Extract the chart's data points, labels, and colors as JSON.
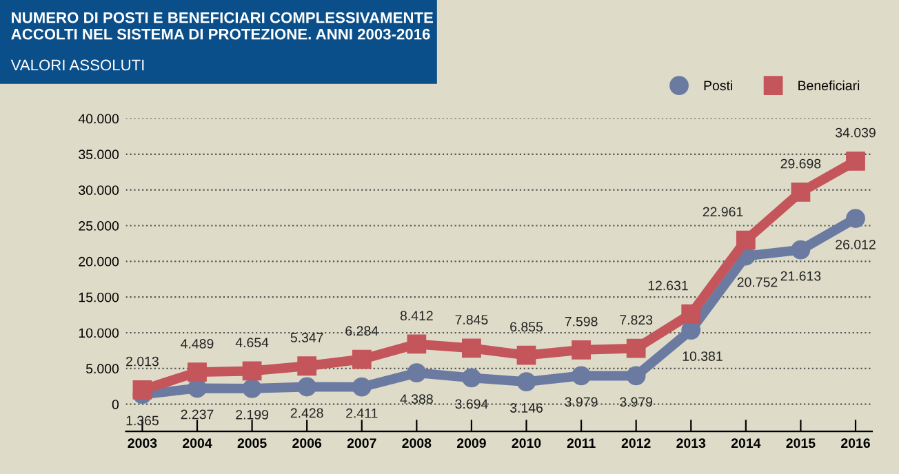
{
  "chart_data": {
    "type": "line",
    "title": "NUMERO DI POSTI E BENEFICIARI COMPLESSIVAMENTE\nACCOLTI NEL SISTEMA DI PROTEZIONE. ANNI 2003-2016",
    "subtitle": "VALORI ASSOLUTI",
    "categories": [
      "2003",
      "2004",
      "2005",
      "2006",
      "2007",
      "2008",
      "2009",
      "2010",
      "2011",
      "2012",
      "2013",
      "2014",
      "2015",
      "2016"
    ],
    "series": [
      {
        "name": "Posti",
        "color": "#6b7aa1",
        "marker": "circle",
        "values": [
          1365,
          2237,
          2199,
          2428,
          2411,
          4388,
          3694,
          3146,
          3979,
          3979,
          10381,
          20752,
          21613,
          26012
        ],
        "value_labels": [
          "1.365",
          "2.237",
          "2.199",
          "2.428",
          "2.411",
          "4.388",
          "3.694",
          "3.146",
          "3.979",
          "3.979",
          "10.381",
          "20.752",
          "21.613",
          "26.012"
        ]
      },
      {
        "name": "Beneficiari",
        "color": "#c4555a",
        "marker": "square",
        "values": [
          2013,
          4489,
          4654,
          5347,
          6284,
          8412,
          7845,
          6855,
          7598,
          7823,
          12631,
          22961,
          29698,
          34039
        ],
        "value_labels": [
          "2.013",
          "4.489",
          "4.654",
          "5.347",
          "6.284",
          "8.412",
          "7.845",
          "6.855",
          "7.598",
          "7.823",
          "12.631",
          "22.961",
          "29.698",
          "34.039"
        ]
      }
    ],
    "ylim": [
      -3800,
      40000
    ],
    "yticks": [
      {
        "value": 0,
        "label": "0"
      },
      {
        "value": 5000,
        "label": "5.000"
      },
      {
        "value": 10000,
        "label": "10.000"
      },
      {
        "value": 15000,
        "label": "15.000"
      },
      {
        "value": 20000,
        "label": "20.000"
      },
      {
        "value": 25000,
        "label": "25.000"
      },
      {
        "value": 30000,
        "label": "30.000"
      },
      {
        "value": 35000,
        "label": "35.000"
      },
      {
        "value": 40000,
        "label": "40.000"
      }
    ],
    "grid": "y",
    "legend": "top right",
    "line_style": "solid"
  }
}
